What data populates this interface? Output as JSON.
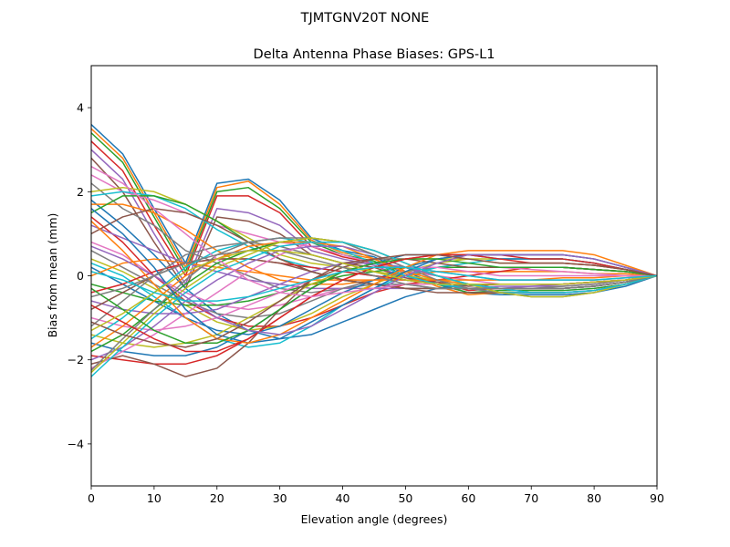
{
  "figure": {
    "suptitle": "TJMTGNV20T      NONE"
  },
  "chart_data": {
    "type": "line",
    "title": "Delta Antenna Phase Biases: GPS-L1",
    "xlabel": "Elevation angle (degrees)",
    "ylabel": "Bias from mean (mm)",
    "xlim": [
      0,
      90
    ],
    "ylim": [
      -5,
      5
    ],
    "xticks": [
      0,
      10,
      20,
      30,
      40,
      50,
      60,
      70,
      80,
      90
    ],
    "yticks": [
      -4,
      -2,
      0,
      2,
      4
    ],
    "ytick_labels": [
      "−4",
      "−2",
      "0",
      "2",
      "4"
    ],
    "grid": false,
    "legend": "none",
    "x": [
      0,
      5,
      10,
      15,
      20,
      25,
      30,
      35,
      40,
      45,
      50,
      55,
      60,
      65,
      70,
      75,
      80,
      85,
      90
    ],
    "color_cycle": [
      "#1f77b4",
      "#ff7f0e",
      "#2ca02c",
      "#d62728",
      "#9467bd",
      "#8c564b",
      "#e377c2",
      "#7f7f7f",
      "#bcbd22",
      "#17becf"
    ],
    "series": [
      {
        "values": [
          3.6,
          2.9,
          1.6,
          0.3,
          2.2,
          2.3,
          1.8,
          0.9,
          0.6,
          0.45,
          0.1,
          -0.2,
          -0.4,
          -0.45,
          -0.45,
          -0.45,
          -0.4,
          -0.25,
          0.0
        ]
      },
      {
        "values": [
          3.5,
          2.8,
          1.5,
          0.2,
          2.1,
          2.25,
          1.7,
          0.85,
          0.55,
          0.4,
          0.05,
          -0.25,
          -0.45,
          -0.4,
          -0.4,
          -0.4,
          -0.35,
          -0.2,
          0.0
        ]
      },
      {
        "values": [
          3.4,
          2.7,
          1.4,
          0.1,
          2.0,
          2.1,
          1.6,
          0.8,
          0.5,
          0.35,
          0.0,
          -0.2,
          -0.4,
          -0.35,
          -0.35,
          -0.35,
          -0.3,
          -0.2,
          0.0
        ]
      },
      {
        "values": [
          3.2,
          2.5,
          1.2,
          0.0,
          1.9,
          1.9,
          1.5,
          0.7,
          0.45,
          0.3,
          0.0,
          -0.15,
          -0.35,
          -0.3,
          -0.3,
          -0.3,
          -0.25,
          -0.15,
          0.0
        ]
      },
      {
        "values": [
          3.0,
          2.3,
          1.0,
          -0.2,
          1.6,
          1.5,
          1.2,
          0.6,
          0.4,
          0.25,
          -0.05,
          -0.2,
          -0.3,
          -0.25,
          -0.25,
          -0.25,
          -0.2,
          -0.1,
          0.0
        ]
      },
      {
        "values": [
          2.8,
          2.0,
          0.8,
          -0.3,
          1.4,
          1.3,
          1.0,
          0.5,
          0.3,
          0.2,
          -0.05,
          -0.15,
          -0.25,
          -0.2,
          -0.2,
          -0.2,
          -0.15,
          -0.1,
          0.0
        ]
      },
      {
        "values": [
          2.4,
          2.0,
          1.8,
          1.5,
          1.2,
          1.0,
          0.8,
          0.7,
          0.5,
          0.3,
          0.1,
          0.0,
          -0.1,
          -0.2,
          -0.2,
          -0.2,
          -0.15,
          -0.1,
          0.0
        ]
      },
      {
        "values": [
          2.2,
          1.6,
          1.2,
          0.6,
          0.3,
          0.0,
          -0.3,
          -0.4,
          -0.3,
          -0.2,
          -0.2,
          -0.3,
          -0.3,
          -0.3,
          -0.3,
          -0.25,
          -0.2,
          -0.1,
          0.0
        ]
      },
      {
        "values": [
          2.0,
          2.1,
          2.0,
          1.7,
          1.3,
          0.9,
          0.5,
          0.3,
          0.2,
          0.1,
          0.0,
          -0.1,
          -0.2,
          -0.2,
          -0.2,
          -0.2,
          -0.15,
          -0.1,
          0.0
        ]
      },
      {
        "values": [
          1.9,
          2.0,
          1.9,
          1.6,
          1.1,
          0.7,
          0.4,
          0.2,
          0.1,
          0.0,
          -0.1,
          -0.2,
          -0.2,
          -0.2,
          -0.2,
          -0.2,
          -0.15,
          -0.1,
          0.0
        ]
      },
      {
        "values": [
          1.8,
          1.2,
          0.5,
          -0.3,
          -0.9,
          -1.3,
          -1.5,
          -1.4,
          -1.1,
          -0.8,
          -0.5,
          -0.3,
          -0.2,
          -0.2,
          -0.2,
          -0.2,
          -0.15,
          -0.1,
          0.0
        ]
      },
      {
        "values": [
          1.7,
          1.7,
          1.5,
          1.1,
          0.6,
          0.2,
          -0.1,
          -0.2,
          -0.2,
          -0.1,
          0.0,
          0.1,
          0.1,
          0.1,
          0.1,
          0.1,
          0.05,
          0.05,
          0.0
        ]
      },
      {
        "values": [
          1.5,
          1.9,
          1.9,
          1.7,
          1.3,
          0.8,
          0.4,
          0.1,
          -0.1,
          -0.2,
          -0.3,
          -0.3,
          -0.3,
          -0.3,
          -0.3,
          -0.3,
          -0.25,
          -0.15,
          0.0
        ]
      },
      {
        "values": [
          1.4,
          0.8,
          0.0,
          -0.6,
          -1.0,
          -1.2,
          -1.2,
          -1.0,
          -0.7,
          -0.4,
          -0.2,
          -0.1,
          0.0,
          0.1,
          0.2,
          0.2,
          0.15,
          0.1,
          0.0
        ]
      },
      {
        "values": [
          1.2,
          0.9,
          0.6,
          0.3,
          0.1,
          -0.1,
          -0.2,
          -0.3,
          -0.3,
          -0.3,
          -0.3,
          -0.3,
          -0.3,
          -0.3,
          -0.25,
          -0.2,
          -0.15,
          -0.1,
          0.0
        ]
      },
      {
        "values": [
          1.0,
          1.4,
          1.6,
          1.5,
          1.2,
          0.8,
          0.4,
          0.1,
          -0.1,
          -0.2,
          -0.3,
          -0.4,
          -0.4,
          -0.4,
          -0.4,
          -0.4,
          -0.35,
          -0.2,
          0.0
        ]
      },
      {
        "values": [
          0.8,
          0.5,
          0.0,
          -0.4,
          -0.7,
          -0.8,
          -0.7,
          -0.5,
          -0.3,
          -0.1,
          0.1,
          0.2,
          0.2,
          0.2,
          0.15,
          0.1,
          0.05,
          0.0,
          0.0
        ]
      },
      {
        "values": [
          0.6,
          0.2,
          -0.2,
          -0.6,
          -0.9,
          -1.0,
          -0.9,
          -0.6,
          -0.3,
          -0.1,
          0.1,
          0.2,
          0.2,
          0.2,
          0.2,
          0.2,
          0.15,
          0.1,
          0.0
        ]
      },
      {
        "values": [
          0.4,
          0.1,
          -0.3,
          -0.7,
          -1.1,
          -1.3,
          -1.2,
          -0.9,
          -0.5,
          -0.2,
          0.1,
          0.3,
          0.4,
          0.4,
          0.4,
          0.4,
          0.3,
          0.15,
          0.0
        ]
      },
      {
        "values": [
          0.3,
          0.0,
          -0.5,
          -1.0,
          -1.5,
          -1.7,
          -1.6,
          -1.2,
          -0.7,
          -0.3,
          0.0,
          0.2,
          0.3,
          0.4,
          0.4,
          0.4,
          0.3,
          0.15,
          0.0
        ]
      },
      {
        "values": [
          0.2,
          -0.2,
          -0.6,
          -1.0,
          -1.3,
          -1.4,
          -1.2,
          -0.8,
          -0.4,
          -0.1,
          0.2,
          0.4,
          0.5,
          0.5,
          0.5,
          0.5,
          0.4,
          0.2,
          0.0
        ]
      },
      {
        "values": [
          0.0,
          0.3,
          0.4,
          0.3,
          0.2,
          0.1,
          0.0,
          -0.1,
          -0.1,
          -0.1,
          -0.1,
          -0.1,
          -0.1,
          -0.1,
          -0.1,
          -0.05,
          -0.05,
          0.0,
          0.0
        ]
      },
      {
        "values": [
          -0.2,
          -0.4,
          -0.6,
          -0.7,
          -0.7,
          -0.6,
          -0.4,
          -0.2,
          0.0,
          0.1,
          0.2,
          0.2,
          0.2,
          0.2,
          0.2,
          0.2,
          0.15,
          0.1,
          0.0
        ]
      },
      {
        "values": [
          -0.4,
          -0.2,
          0.1,
          0.3,
          0.4,
          0.4,
          0.3,
          0.2,
          0.1,
          0.0,
          -0.1,
          -0.2,
          -0.2,
          -0.2,
          -0.2,
          -0.2,
          -0.15,
          -0.1,
          0.0
        ]
      },
      {
        "values": [
          -0.6,
          -0.8,
          -0.9,
          -0.9,
          -0.8,
          -0.5,
          -0.2,
          0.1,
          0.3,
          0.3,
          0.2,
          0.1,
          0.0,
          -0.1,
          -0.1,
          -0.1,
          -0.1,
          -0.05,
          0.0
        ]
      },
      {
        "values": [
          -0.8,
          -0.4,
          0.0,
          0.3,
          0.4,
          0.4,
          0.3,
          0.1,
          -0.1,
          -0.2,
          -0.3,
          -0.3,
          -0.3,
          -0.3,
          -0.3,
          -0.3,
          -0.25,
          -0.15,
          0.0
        ]
      },
      {
        "values": [
          -1.0,
          -1.2,
          -1.3,
          -1.2,
          -1.0,
          -0.7,
          -0.4,
          -0.1,
          0.1,
          0.2,
          0.2,
          0.2,
          0.1,
          0.0,
          0.0,
          0.0,
          0.0,
          0.0,
          0.0
        ]
      },
      {
        "values": [
          -1.2,
          -0.6,
          0.0,
          0.5,
          0.7,
          0.8,
          0.7,
          0.5,
          0.3,
          0.1,
          -0.1,
          -0.2,
          -0.3,
          -0.3,
          -0.3,
          -0.3,
          -0.25,
          -0.15,
          0.0
        ]
      },
      {
        "values": [
          -1.4,
          -1.6,
          -1.7,
          -1.6,
          -1.4,
          -1.0,
          -0.6,
          -0.2,
          0.1,
          0.3,
          0.4,
          0.4,
          0.4,
          0.3,
          0.3,
          0.3,
          0.25,
          0.15,
          0.0
        ]
      },
      {
        "values": [
          -1.5,
          -1.0,
          -0.4,
          0.2,
          0.6,
          0.8,
          0.9,
          0.8,
          0.6,
          0.3,
          0.0,
          -0.2,
          -0.3,
          -0.4,
          -0.4,
          -0.4,
          -0.35,
          -0.2,
          0.0
        ]
      },
      {
        "values": [
          -1.6,
          -1.8,
          -1.9,
          -1.9,
          -1.7,
          -1.3,
          -0.8,
          -0.3,
          0.1,
          0.3,
          0.5,
          0.5,
          0.5,
          0.4,
          0.4,
          0.4,
          0.3,
          0.15,
          0.0
        ]
      },
      {
        "values": [
          -1.7,
          -1.2,
          -0.6,
          0.0,
          0.4,
          0.7,
          0.8,
          0.8,
          0.7,
          0.4,
          0.1,
          -0.1,
          -0.2,
          -0.3,
          -0.3,
          -0.3,
          -0.25,
          -0.15,
          0.0
        ]
      },
      {
        "values": [
          -1.8,
          -1.4,
          -0.8,
          -0.2,
          0.3,
          0.6,
          0.8,
          0.9,
          0.8,
          0.5,
          0.2,
          0.0,
          -0.2,
          -0.3,
          -0.3,
          -0.3,
          -0.25,
          -0.15,
          0.0
        ]
      },
      {
        "values": [
          -1.9,
          -2.0,
          -2.1,
          -2.1,
          -1.9,
          -1.5,
          -1.0,
          -0.5,
          -0.1,
          0.2,
          0.4,
          0.5,
          0.5,
          0.5,
          0.4,
          0.4,
          0.3,
          0.15,
          0.0
        ]
      },
      {
        "values": [
          -2.0,
          -1.7,
          -1.2,
          -0.6,
          -0.1,
          0.3,
          0.6,
          0.7,
          0.7,
          0.5,
          0.2,
          0.0,
          -0.2,
          -0.3,
          -0.3,
          -0.3,
          -0.25,
          -0.15,
          0.0
        ]
      },
      {
        "values": [
          -2.1,
          -1.9,
          -2.1,
          -2.4,
          -2.2,
          -1.6,
          -0.8,
          -0.1,
          0.3,
          0.4,
          0.4,
          0.3,
          0.2,
          0.2,
          0.2,
          0.2,
          0.15,
          0.1,
          0.0
        ]
      },
      {
        "values": [
          -2.2,
          -1.8,
          -1.4,
          -0.9,
          -0.4,
          0.1,
          0.5,
          0.8,
          0.8,
          0.6,
          0.3,
          0.0,
          -0.2,
          -0.3,
          -0.4,
          -0.4,
          -0.35,
          -0.2,
          0.0
        ]
      },
      {
        "values": [
          -2.25,
          -1.5,
          -0.8,
          -0.1,
          0.5,
          0.8,
          0.9,
          0.9,
          0.8,
          0.5,
          0.2,
          -0.1,
          -0.3,
          -0.4,
          -0.5,
          -0.5,
          -0.4,
          -0.2,
          0.0
        ]
      },
      {
        "values": [
          -2.3,
          -1.6,
          -0.9,
          -0.3,
          0.2,
          0.5,
          0.8,
          0.9,
          0.8,
          0.6,
          0.3,
          0.0,
          -0.2,
          -0.4,
          -0.5,
          -0.5,
          -0.4,
          -0.2,
          0.0
        ]
      },
      {
        "values": [
          -2.4,
          -1.7,
          -1.0,
          -0.4,
          0.1,
          0.4,
          0.7,
          0.8,
          0.8,
          0.6,
          0.3,
          0.0,
          -0.2,
          -0.3,
          -0.4,
          -0.4,
          -0.35,
          -0.2,
          0.0
        ]
      },
      {
        "values": [
          1.6,
          1.0,
          0.2,
          -0.8,
          -1.4,
          -1.6,
          -1.5,
          -1.1,
          -0.7,
          -0.3,
          0.1,
          0.4,
          0.5,
          0.5,
          0.5,
          0.5,
          0.4,
          0.2,
          0.0
        ]
      },
      {
        "values": [
          1.3,
          0.6,
          -0.2,
          -1.0,
          -1.5,
          -1.6,
          -1.4,
          -1.0,
          -0.6,
          -0.2,
          0.2,
          0.5,
          0.6,
          0.6,
          0.6,
          0.6,
          0.5,
          0.25,
          0.0
        ]
      },
      {
        "values": [
          -0.3,
          -0.8,
          -1.3,
          -1.6,
          -1.6,
          -1.3,
          -0.8,
          -0.3,
          0.1,
          0.3,
          0.4,
          0.4,
          0.3,
          0.2,
          0.2,
          0.2,
          0.15,
          0.1,
          0.0
        ]
      },
      {
        "values": [
          -0.7,
          -1.1,
          -1.5,
          -1.8,
          -1.8,
          -1.5,
          -1.0,
          -0.5,
          -0.1,
          0.2,
          0.4,
          0.5,
          0.5,
          0.4,
          0.3,
          0.3,
          0.25,
          0.15,
          0.0
        ]
      },
      {
        "values": [
          0.7,
          0.4,
          0.0,
          -0.5,
          -1.0,
          -1.3,
          -1.4,
          -1.2,
          -0.8,
          -0.4,
          0.0,
          0.3,
          0.5,
          0.5,
          0.5,
          0.5,
          0.4,
          0.2,
          0.0
        ]
      },
      {
        "values": [
          -1.1,
          -1.4,
          -1.6,
          -1.7,
          -1.5,
          -1.1,
          -0.6,
          -0.1,
          0.2,
          0.4,
          0.5,
          0.5,
          0.4,
          0.3,
          0.3,
          0.3,
          0.25,
          0.15,
          0.0
        ]
      },
      {
        "values": [
          2.6,
          2.2,
          1.6,
          1.0,
          0.4,
          -0.1,
          -0.4,
          -0.5,
          -0.4,
          -0.3,
          -0.2,
          -0.2,
          -0.2,
          -0.2,
          -0.2,
          -0.2,
          -0.15,
          -0.1,
          0.0
        ]
      },
      {
        "values": [
          -0.5,
          -0.3,
          0.0,
          0.3,
          0.5,
          0.6,
          0.6,
          0.4,
          0.2,
          0.0,
          -0.2,
          -0.3,
          -0.3,
          -0.3,
          -0.3,
          -0.3,
          -0.25,
          -0.15,
          0.0
        ]
      },
      {
        "values": [
          -1.3,
          -0.9,
          -0.4,
          0.1,
          0.4,
          0.6,
          0.6,
          0.5,
          0.3,
          0.1,
          -0.1,
          -0.2,
          -0.2,
          -0.2,
          -0.2,
          -0.2,
          -0.15,
          -0.1,
          0.0
        ]
      },
      {
        "values": [
          0.1,
          -0.1,
          -0.4,
          -0.6,
          -0.6,
          -0.5,
          -0.3,
          -0.1,
          0.1,
          0.2,
          0.2,
          0.1,
          0.0,
          -0.1,
          -0.1,
          -0.1,
          -0.1,
          -0.05,
          0.0
        ]
      }
    ]
  }
}
